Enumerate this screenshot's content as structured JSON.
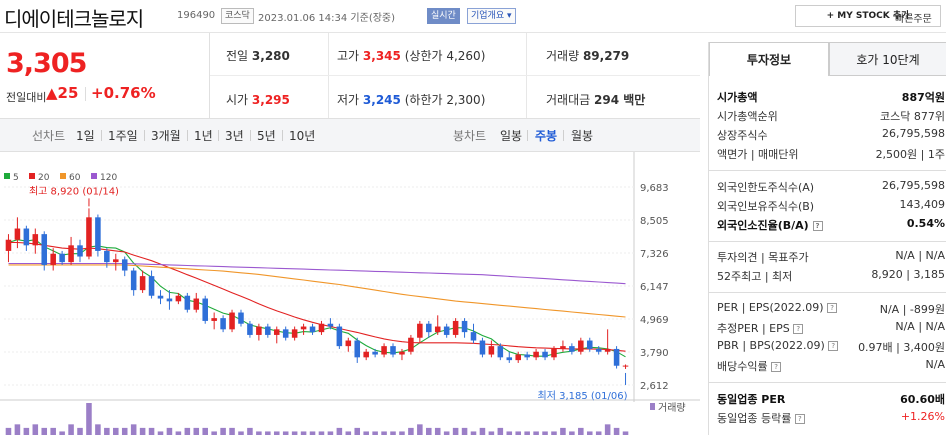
{
  "header": {
    "title": "디에이테크놀로지",
    "code": "196490",
    "market": "코스닥",
    "datetime": "2023.01.06 14:34 기준(장중)",
    "realtime": "실시간",
    "company_overview": "기업개요 ▾",
    "my_stock": "+ MY STOCK 추가",
    "quick_order": "빠른주문"
  },
  "price": {
    "current": "3,305",
    "change_label": "전일대비",
    "change": "▲25",
    "change_pct": "+0.76%"
  },
  "quote": {
    "prev_label": "전일",
    "prev": "3,280",
    "high_label": "고가",
    "high": "3,345",
    "upper_limit": "(상한가 4,260)",
    "volume_label": "거래량",
    "volume": "89,279",
    "open_label": "시가",
    "open": "3,295",
    "low_label": "저가",
    "low": "3,245",
    "lower_limit": "(하한가 2,300)",
    "amount_label": "거래대금",
    "amount": "294 백만"
  },
  "chart_tabs": {
    "line_label": "선차트",
    "line": [
      "1일",
      "1주일",
      "3개월",
      "1년",
      "3년",
      "5년",
      "10년"
    ],
    "candle_label": "봉차트",
    "candle": [
      "일봉",
      "주봉",
      "월봉"
    ],
    "active": "주봉"
  },
  "chart_data": {
    "type": "candlestick",
    "legend": [
      {
        "name": "5",
        "color": "#1faa3b"
      },
      {
        "name": "20",
        "color": "#e22222"
      },
      {
        "name": "60",
        "color": "#f0962a"
      },
      {
        "name": "120",
        "color": "#9b59d0"
      }
    ],
    "yticks": [
      "9,683",
      "8,505",
      "7,326",
      "6,147",
      "4,969",
      "3,790",
      "2,612"
    ],
    "ylim": [
      2612,
      9683
    ],
    "high_note": "최고 8,920 (01/14)",
    "low_note": "최저 3,185 (01/06)",
    "volume_label": "거래량",
    "candles": [
      [
        7400,
        8000,
        7000,
        7800
      ],
      [
        7800,
        8600,
        7500,
        8200
      ],
      [
        8200,
        8300,
        7400,
        7600
      ],
      [
        7600,
        8200,
        7300,
        8000
      ],
      [
        8000,
        8100,
        6700,
        6900
      ],
      [
        6900,
        7500,
        6700,
        7300
      ],
      [
        7300,
        7400,
        6900,
        7000
      ],
      [
        7000,
        7900,
        6900,
        7600
      ],
      [
        7600,
        7800,
        7000,
        7200
      ],
      [
        7200,
        8920,
        7100,
        8600
      ],
      [
        8600,
        8700,
        7200,
        7400
      ],
      [
        7400,
        7500,
        6800,
        7000
      ],
      [
        7000,
        7300,
        6700,
        7100
      ],
      [
        7100,
        7200,
        6500,
        6700
      ],
      [
        6700,
        6800,
        5800,
        6000
      ],
      [
        6000,
        6700,
        5900,
        6500
      ],
      [
        6500,
        6700,
        5700,
        5800
      ],
      [
        5800,
        6000,
        5500,
        5700
      ],
      [
        5700,
        6000,
        5300,
        5600
      ],
      [
        5600,
        5900,
        5500,
        5800
      ],
      [
        5800,
        5900,
        5200,
        5300
      ],
      [
        5300,
        5900,
        5200,
        5700
      ],
      [
        5700,
        5800,
        4800,
        4900
      ],
      [
        4900,
        5200,
        4600,
        5000
      ],
      [
        5000,
        5100,
        4500,
        4600
      ],
      [
        4600,
        5300,
        4500,
        5200
      ],
      [
        5200,
        5300,
        4700,
        4800
      ],
      [
        4800,
        4900,
        4300,
        4400
      ],
      [
        4400,
        4800,
        4200,
        4700
      ],
      [
        4700,
        4800,
        4300,
        4400
      ],
      [
        4400,
        4700,
        4100,
        4600
      ],
      [
        4600,
        4700,
        4200,
        4300
      ],
      [
        4300,
        4700,
        4200,
        4600
      ],
      [
        4600,
        4800,
        4400,
        4700
      ],
      [
        4700,
        4800,
        4400,
        4500
      ],
      [
        4500,
        4900,
        4400,
        4800
      ],
      [
        4800,
        5000,
        4600,
        4700
      ],
      [
        4700,
        4800,
        3900,
        4000
      ],
      [
        4000,
        4300,
        3800,
        4200
      ],
      [
        4200,
        4300,
        3400,
        3600
      ],
      [
        3600,
        3900,
        3500,
        3800
      ],
      [
        3800,
        3900,
        3600,
        3700
      ],
      [
        3700,
        4100,
        3600,
        4000
      ],
      [
        4000,
        4100,
        3600,
        3700
      ],
      [
        3700,
        3900,
        3500,
        3800
      ],
      [
        3800,
        4400,
        3700,
        4300
      ],
      [
        4300,
        4900,
        4100,
        4800
      ],
      [
        4800,
        4900,
        4300,
        4500
      ],
      [
        4500,
        5100,
        4400,
        4700
      ],
      [
        4700,
        4800,
        4300,
        4400
      ],
      [
        4400,
        5000,
        4300,
        4900
      ],
      [
        4900,
        5000,
        4300,
        4500
      ],
      [
        4500,
        4800,
        4100,
        4200
      ],
      [
        4200,
        4300,
        3600,
        3700
      ],
      [
        3700,
        4200,
        3600,
        4000
      ],
      [
        4000,
        4100,
        3500,
        3600
      ],
      [
        3600,
        3800,
        3400,
        3500
      ],
      [
        3500,
        3800,
        3400,
        3700
      ],
      [
        3700,
        3800,
        3500,
        3600
      ],
      [
        3600,
        3900,
        3500,
        3800
      ],
      [
        3800,
        3900,
        3500,
        3600
      ],
      [
        3600,
        4000,
        3500,
        3900
      ],
      [
        3900,
        4200,
        3800,
        4000
      ],
      [
        4000,
        4100,
        3700,
        3800
      ],
      [
        3800,
        4300,
        3700,
        4200
      ],
      [
        4200,
        4300,
        3800,
        3900
      ],
      [
        3900,
        4000,
        3700,
        3800
      ],
      [
        3800,
        4600,
        3700,
        3900
      ],
      [
        3900,
        4000,
        3200,
        3300
      ],
      [
        3280,
        3345,
        3185,
        3305
      ]
    ],
    "ma5": [
      7700,
      7800,
      7750,
      7800,
      7550,
      7400,
      7250,
      7300,
      7300,
      7540,
      7580,
      7520,
      7500,
      7360,
      6960,
      6660,
      6460,
      6140,
      5920,
      5880,
      5640,
      5580,
      5460,
      5320,
      5180,
      5100,
      4940,
      4760,
      4680,
      4620,
      4540,
      4480,
      4460,
      4520,
      4500,
      4580,
      4660,
      4540,
      4460,
      4220,
      4020,
      3860,
      3780,
      3760,
      3800,
      3900,
      4120,
      4320,
      4500,
      4580,
      4660,
      4650,
      4540,
      4380,
      4260,
      4000,
      3800,
      3700,
      3680,
      3640,
      3640,
      3720,
      3780,
      3820,
      3900,
      3960,
      3940,
      3900,
      3800,
      3620
    ],
    "ma20": [
      7700,
      7700,
      7680,
      7650,
      7600,
      7550,
      7500,
      7480,
      7460,
      7500,
      7480,
      7440,
      7400,
      7360,
      7250,
      7150,
      7050,
      6930,
      6800,
      6680,
      6550,
      6430,
      6300,
      6170,
      6040,
      5910,
      5780,
      5650,
      5510,
      5380,
      5260,
      5150,
      5040,
      4940,
      4850,
      4770,
      4700,
      4630,
      4560,
      4490,
      4410,
      4330,
      4260,
      4200,
      4160,
      4130,
      4120,
      4120,
      4120,
      4120,
      4120,
      4110,
      4100,
      4080,
      4060,
      4040,
      4010,
      3980,
      3960,
      3940,
      3930,
      3920,
      3910,
      3900,
      3900,
      3900,
      3890,
      3880,
      3850,
      3820
    ],
    "ma60": [
      6900,
      6900,
      6900,
      6900,
      6900,
      6900,
      6900,
      6900,
      6900,
      6900,
      6900,
      6900,
      6900,
      6900,
      6880,
      6860,
      6840,
      6820,
      6800,
      6780,
      6760,
      6740,
      6720,
      6700,
      6680,
      6650,
      6620,
      6590,
      6560,
      6520,
      6480,
      6440,
      6400,
      6360,
      6320,
      6280,
      6240,
      6200,
      6150,
      6100,
      6050,
      6000,
      5950,
      5900,
      5850,
      5810,
      5770,
      5730,
      5690,
      5650,
      5610,
      5580,
      5550,
      5520,
      5490,
      5460,
      5430,
      5400,
      5370,
      5340,
      5310,
      5280,
      5250,
      5220,
      5190,
      5160,
      5130,
      5100,
      5070,
      5040
    ],
    "ma120": [
      6950,
      6950,
      6950,
      6950,
      6950,
      6950,
      6950,
      6950,
      6950,
      6950,
      6950,
      6950,
      6950,
      6950,
      6940,
      6930,
      6920,
      6910,
      6900,
      6890,
      6880,
      6870,
      6860,
      6850,
      6840,
      6830,
      6820,
      6810,
      6800,
      6790,
      6780,
      6770,
      6760,
      6750,
      6740,
      6730,
      6720,
      6710,
      6700,
      6690,
      6680,
      6670,
      6660,
      6650,
      6640,
      6630,
      6620,
      6610,
      6600,
      6590,
      6580,
      6570,
      6560,
      6550,
      6530,
      6510,
      6490,
      6470,
      6450,
      6430,
      6410,
      6390,
      6370,
      6350,
      6330,
      6310,
      6290,
      6270,
      6250,
      6230
    ],
    "volume": [
      2,
      3,
      2,
      3,
      2,
      2,
      1,
      3,
      2,
      9,
      3,
      2,
      2,
      2,
      3,
      2,
      2,
      1,
      2,
      1,
      2,
      2,
      2,
      1,
      2,
      2,
      1,
      2,
      1,
      1,
      1,
      1,
      1,
      1,
      1,
      1,
      1,
      2,
      1,
      2,
      1,
      1,
      1,
      1,
      1,
      2,
      3,
      2,
      2,
      1,
      2,
      2,
      1,
      2,
      1,
      2,
      1,
      1,
      1,
      1,
      1,
      1,
      2,
      1,
      2,
      1,
      1,
      3,
      2,
      1
    ]
  },
  "info_tabs": [
    "투자정보",
    "호가 10단계"
  ],
  "info": {
    "market_cap_label": "시가총액",
    "market_cap": "887억원",
    "rank_label": "시가총액순위",
    "rank": "코스닥 877위",
    "shares_label": "상장주식수",
    "shares": "26,795,598",
    "par_label": "액면가 | 매매단위",
    "par": "2,500원 | 1주",
    "foreign_limit_label": "외국인한도주식수(A)",
    "foreign_limit": "26,795,598",
    "foreign_hold_label": "외국인보유주식수(B)",
    "foreign_hold": "143,409",
    "foreign_ratio_label": "외국인소진율(B/A)",
    "foreign_ratio": "0.54%",
    "opinion_label": "투자의견 | 목표주가",
    "opinion": "N/A | N/A",
    "w52_label": "52주최고 | 최저",
    "w52": "8,920 | 3,185",
    "per_label": "PER | EPS(2022.09)",
    "per": "N/A | -899원",
    "eper_label": "추정PER | EPS",
    "eper": "N/A | N/A",
    "pbr_label": "PBR | BPS(2022.09)",
    "pbr": "0.97배 | 3,400원",
    "div_label": "배당수익률",
    "div": "N/A",
    "ind_per_label": "동일업종 PER",
    "ind_per": "60.60배",
    "ind_rate_label": "동일업종 등락률",
    "ind_rate": "+1.26%"
  }
}
